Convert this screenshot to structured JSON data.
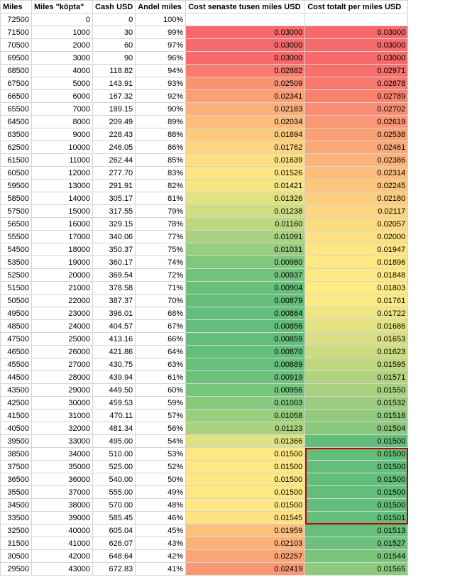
{
  "headers": [
    "Miles",
    "Miles \"köpta\"",
    "Cash USD",
    "Andel miles",
    "Cost senaste tusen miles USD",
    "Cost totalt per miles USD"
  ],
  "rows": [
    {
      "miles": "72500",
      "bought": "0",
      "cash": "0",
      "share": "100%",
      "last": "",
      "total": "",
      "last_bg": "#ffffff",
      "total_bg": "#ffffff"
    },
    {
      "miles": "71500",
      "bought": "1000",
      "cash": "30",
      "share": "99%",
      "last": "0.03000",
      "total": "0.03000",
      "last_bg": "#f8696b",
      "total_bg": "#f8696b"
    },
    {
      "miles": "70500",
      "bought": "2000",
      "cash": "60",
      "share": "97%",
      "last": "0.03000",
      "total": "0.03000",
      "last_bg": "#f8696b",
      "total_bg": "#f8696b"
    },
    {
      "miles": "69500",
      "bought": "3000",
      "cash": "90",
      "share": "96%",
      "last": "0.03000",
      "total": "0.03000",
      "last_bg": "#f8696b",
      "total_bg": "#f8696b"
    },
    {
      "miles": "68500",
      "bought": "4000",
      "cash": "118.82",
      "share": "94%",
      "last": "0.02882",
      "total": "0.02971",
      "last_bg": "#f97a6e",
      "total_bg": "#f86f6c"
    },
    {
      "miles": "67500",
      "bought": "5000",
      "cash": "143.91",
      "share": "93%",
      "last": "0.02509",
      "total": "0.02878",
      "last_bg": "#fa9273",
      "total_bg": "#f9786d"
    },
    {
      "miles": "66500",
      "bought": "6000",
      "cash": "167.32",
      "share": "92%",
      "last": "0.02341",
      "total": "0.02789",
      "last_bg": "#fb9f75",
      "total_bg": "#f9826f"
    },
    {
      "miles": "65500",
      "bought": "7000",
      "cash": "189.15",
      "share": "90%",
      "last": "0.02183",
      "total": "0.02702",
      "last_bg": "#fcaf78",
      "total_bg": "#f98c71"
    },
    {
      "miles": "64500",
      "bought": "8000",
      "cash": "209.49",
      "share": "89%",
      "last": "0.02034",
      "total": "0.02619",
      "last_bg": "#fcbc7b",
      "total_bg": "#fa9673"
    },
    {
      "miles": "63500",
      "bought": "9000",
      "cash": "228.43",
      "share": "88%",
      "last": "0.01894",
      "total": "0.02538",
      "last_bg": "#fdca7d",
      "total_bg": "#faa075"
    },
    {
      "miles": "62500",
      "bought": "10000",
      "cash": "246.05",
      "share": "86%",
      "last": "0.01762",
      "total": "0.02461",
      "last_bg": "#fed47f",
      "total_bg": "#fbaa77"
    },
    {
      "miles": "61500",
      "bought": "11000",
      "cash": "262.44",
      "share": "85%",
      "last": "0.01639",
      "total": "0.02386",
      "last_bg": "#fedf81",
      "total_bg": "#fbb379"
    },
    {
      "miles": "60500",
      "bought": "12000",
      "cash": "277.70",
      "share": "83%",
      "last": "0.01526",
      "total": "0.02314",
      "last_bg": "#ffe583",
      "total_bg": "#fcbc7b"
    },
    {
      "miles": "59500",
      "bought": "13000",
      "cash": "291.91",
      "share": "82%",
      "last": "0.01421",
      "total": "0.02245",
      "last_bg": "#f3e683",
      "total_bg": "#fcc57c"
    },
    {
      "miles": "58500",
      "bought": "14000",
      "cash": "305.17",
      "share": "81%",
      "last": "0.01326",
      "total": "0.02180",
      "last_bg": "#e3e282",
      "total_bg": "#fdcd7e"
    },
    {
      "miles": "57500",
      "bought": "15000",
      "cash": "317.55",
      "share": "79%",
      "last": "0.01238",
      "total": "0.02117",
      "last_bg": "#d1dd81",
      "total_bg": "#fdd47f"
    },
    {
      "miles": "56500",
      "bought": "16000",
      "cash": "329.15",
      "share": "78%",
      "last": "0.01160",
      "total": "0.02057",
      "last_bg": "#bdd880",
      "total_bg": "#fedb80"
    },
    {
      "miles": "55500",
      "bought": "17000",
      "cash": "340.06",
      "share": "77%",
      "last": "0.01091",
      "total": "0.02000",
      "last_bg": "#a8d27f",
      "total_bg": "#fee182"
    },
    {
      "miles": "54500",
      "bought": "18000",
      "cash": "350.37",
      "share": "75%",
      "last": "0.01031",
      "total": "0.01947",
      "last_bg": "#97cd7e",
      "total_bg": "#ffe583"
    },
    {
      "miles": "53500",
      "bought": "19000",
      "cash": "360.17",
      "share": "74%",
      "last": "0.00980",
      "total": "0.01896",
      "last_bg": "#7fc77c",
      "total_bg": "#ffe884"
    },
    {
      "miles": "52500",
      "bought": "20000",
      "cash": "369.54",
      "share": "72%",
      "last": "0.00937",
      "total": "0.01848",
      "last_bg": "#72c37c",
      "total_bg": "#ffea84"
    },
    {
      "miles": "51500",
      "bought": "21000",
      "cash": "378.58",
      "share": "71%",
      "last": "0.00904",
      "total": "0.01803",
      "last_bg": "#69c07b",
      "total_bg": "#ffeb84"
    },
    {
      "miles": "50500",
      "bought": "22000",
      "cash": "387.37",
      "share": "70%",
      "last": "0.00879",
      "total": "0.01761",
      "last_bg": "#64be7b",
      "total_bg": "#fceb84"
    },
    {
      "miles": "49500",
      "bought": "23000",
      "cash": "396.01",
      "share": "68%",
      "last": "0.00864",
      "total": "0.01722",
      "last_bg": "#63be7b",
      "total_bg": "#eee683"
    },
    {
      "miles": "48500",
      "bought": "24000",
      "cash": "404.57",
      "share": "67%",
      "last": "0.00856",
      "total": "0.01686",
      "last_bg": "#63be7b",
      "total_bg": "#e4e383"
    },
    {
      "miles": "47500",
      "bought": "25000",
      "cash": "413.16",
      "share": "66%",
      "last": "0.00859",
      "total": "0.01653",
      "last_bg": "#63be7b",
      "total_bg": "#d8df82"
    },
    {
      "miles": "46500",
      "bought": "26000",
      "cash": "421.86",
      "share": "64%",
      "last": "0.00870",
      "total": "0.01623",
      "last_bg": "#64be7b",
      "total_bg": "#cbdc81"
    },
    {
      "miles": "45500",
      "bought": "27000",
      "cash": "430.75",
      "share": "63%",
      "last": "0.00889",
      "total": "0.01595",
      "last_bg": "#67bf7b",
      "total_bg": "#bfd880"
    },
    {
      "miles": "44500",
      "bought": "28000",
      "cash": "439.94",
      "share": "61%",
      "last": "0.00919",
      "total": "0.01571",
      "last_bg": "#6dc17c",
      "total_bg": "#b3d47f"
    },
    {
      "miles": "43500",
      "bought": "29000",
      "cash": "449.50",
      "share": "60%",
      "last": "0.00956",
      "total": "0.01550",
      "last_bg": "#77c47c",
      "total_bg": "#a7d07f"
    },
    {
      "miles": "42500",
      "bought": "30000",
      "cash": "459.53",
      "share": "59%",
      "last": "0.01003",
      "total": "0.01532",
      "last_bg": "#86c97d",
      "total_bg": "#9ccd7e"
    },
    {
      "miles": "41500",
      "bought": "31000",
      "cash": "470.11",
      "share": "57%",
      "last": "0.01058",
      "total": "0.01516",
      "last_bg": "#98ce7e",
      "total_bg": "#92ca7e"
    },
    {
      "miles": "40500",
      "bought": "32000",
      "cash": "481.34",
      "share": "56%",
      "last": "0.01123",
      "total": "0.01504",
      "last_bg": "#abd37f",
      "total_bg": "#89c87d"
    },
    {
      "miles": "39500",
      "bought": "33000",
      "cash": "495.00",
      "share": "54%",
      "last": "0.01366",
      "total": "0.01500",
      "last_bg": "#e0e182",
      "total_bg": "#63be7b"
    },
    {
      "miles": "38500",
      "bought": "34000",
      "cash": "510.00",
      "share": "53%",
      "last": "0.01500",
      "total": "0.01500",
      "last_bg": "#ffe884",
      "total_bg": "#63be7b"
    },
    {
      "miles": "37500",
      "bought": "35000",
      "cash": "525.00",
      "share": "52%",
      "last": "0.01500",
      "total": "0.01500",
      "last_bg": "#ffe884",
      "total_bg": "#63be7b"
    },
    {
      "miles": "36500",
      "bought": "36000",
      "cash": "540.00",
      "share": "50%",
      "last": "0.01500",
      "total": "0.01500",
      "last_bg": "#ffe884",
      "total_bg": "#63be7b"
    },
    {
      "miles": "35500",
      "bought": "37000",
      "cash": "555.00",
      "share": "49%",
      "last": "0.01500",
      "total": "0.01500",
      "last_bg": "#ffe884",
      "total_bg": "#63be7b"
    },
    {
      "miles": "34500",
      "bought": "38000",
      "cash": "570.00",
      "share": "48%",
      "last": "0.01500",
      "total": "0.01500",
      "last_bg": "#ffe884",
      "total_bg": "#63be7b"
    },
    {
      "miles": "33500",
      "bought": "39000",
      "cash": "585.45",
      "share": "46%",
      "last": "0.01545",
      "total": "0.01501",
      "last_bg": "#ffe283",
      "total_bg": "#63be7b"
    },
    {
      "miles": "32500",
      "bought": "40000",
      "cash": "605.04",
      "share": "45%",
      "last": "0.01959",
      "total": "0.01513",
      "last_bg": "#fcc07c",
      "total_bg": "#67bf7b"
    },
    {
      "miles": "31500",
      "bought": "41000",
      "cash": "626.07",
      "share": "43%",
      "last": "0.02103",
      "total": "0.01527",
      "last_bg": "#fbb279",
      "total_bg": "#6dc17c"
    },
    {
      "miles": "30500",
      "bought": "42000",
      "cash": "648.64",
      "share": "42%",
      "last": "0.02257",
      "total": "0.01544",
      "last_bg": "#fba577",
      "total_bg": "#79c57c"
    },
    {
      "miles": "29500",
      "bought": "43000",
      "cash": "672.83",
      "share": "41%",
      "last": "0.02419",
      "total": "0.01565",
      "last_bg": "#fa9874",
      "total_bg": "#8cca7e"
    }
  ],
  "highlight": {
    "from_row": 34,
    "to_row": 39,
    "column": 5,
    "color": "#c00000"
  }
}
